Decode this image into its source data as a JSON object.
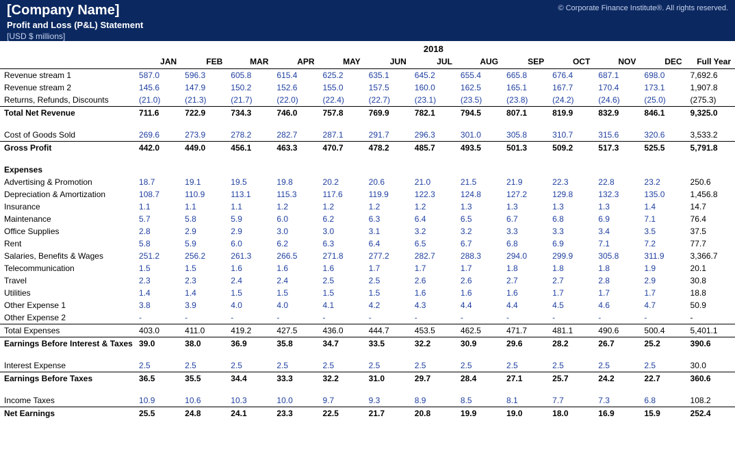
{
  "styling": {
    "header_bg": "#0b2860",
    "header_text": "#ffffff",
    "header_subtext": "#c8d4ee",
    "value_color": "#2040a0",
    "total_color": "#000000",
    "border_color": "#000000",
    "font_family": "Arial"
  },
  "header": {
    "company": "[Company Name]",
    "subtitle": "Profit and Loss (P&L) Statement",
    "units": "[USD $ millions]",
    "copyright": "© Corporate Finance Institute®. All rights reserved."
  },
  "year": "2018",
  "months": [
    "JAN",
    "FEB",
    "MAR",
    "APR",
    "MAY",
    "JUN",
    "JUL",
    "AUG",
    "SEP",
    "OCT",
    "NOV",
    "DEC"
  ],
  "full_year_label": "Full Year",
  "rows": [
    {
      "label": "Revenue stream 1",
      "vals": [
        "587.0",
        "596.3",
        "605.8",
        "615.4",
        "625.2",
        "635.1",
        "645.2",
        "655.4",
        "665.8",
        "676.4",
        "687.1",
        "698.0"
      ],
      "full": "7,692.6",
      "style": "data"
    },
    {
      "label": "Revenue stream 2",
      "vals": [
        "145.6",
        "147.9",
        "150.2",
        "152.6",
        "155.0",
        "157.5",
        "160.0",
        "162.5",
        "165.1",
        "167.7",
        "170.4",
        "173.1"
      ],
      "full": "1,907.8",
      "style": "data"
    },
    {
      "label": "Returns, Refunds, Discounts",
      "vals": [
        "(21.0)",
        "(21.3)",
        "(21.7)",
        "(22.0)",
        "(22.4)",
        "(22.7)",
        "(23.1)",
        "(23.5)",
        "(23.8)",
        "(24.2)",
        "(24.6)",
        "(25.0)"
      ],
      "full": "(275.3)",
      "style": "data"
    },
    {
      "label": "Total Net Revenue",
      "vals": [
        "711.6",
        "722.9",
        "734.3",
        "746.0",
        "757.8",
        "769.9",
        "782.1",
        "794.5",
        "807.1",
        "819.9",
        "832.9",
        "846.1"
      ],
      "full": "9,325.0",
      "style": "total",
      "border_top": true
    },
    {
      "style": "spacer"
    },
    {
      "label": "Cost of Goods Sold",
      "vals": [
        "269.6",
        "273.9",
        "278.2",
        "282.7",
        "287.1",
        "291.7",
        "296.3",
        "301.0",
        "305.8",
        "310.7",
        "315.6",
        "320.6"
      ],
      "full": "3,533.2",
      "style": "data"
    },
    {
      "label": "Gross Profit",
      "vals": [
        "442.0",
        "449.0",
        "456.1",
        "463.3",
        "470.7",
        "478.2",
        "485.7",
        "493.5",
        "501.3",
        "509.2",
        "517.3",
        "525.5"
      ],
      "full": "5,791.8",
      "style": "total",
      "border_top": true
    },
    {
      "style": "spacer"
    },
    {
      "label": "Expenses",
      "style": "section"
    },
    {
      "label": "Advertising & Promotion",
      "vals": [
        "18.7",
        "19.1",
        "19.5",
        "19.8",
        "20.2",
        "20.6",
        "21.0",
        "21.5",
        "21.9",
        "22.3",
        "22.8",
        "23.2"
      ],
      "full": "250.6",
      "style": "data"
    },
    {
      "label": "Depreciation & Amortization",
      "vals": [
        "108.7",
        "110.9",
        "113.1",
        "115.3",
        "117.6",
        "119.9",
        "122.3",
        "124.8",
        "127.2",
        "129.8",
        "132.3",
        "135.0"
      ],
      "full": "1,456.8",
      "style": "data"
    },
    {
      "label": "Insurance",
      "vals": [
        "1.1",
        "1.1",
        "1.1",
        "1.2",
        "1.2",
        "1.2",
        "1.2",
        "1.3",
        "1.3",
        "1.3",
        "1.3",
        "1.4"
      ],
      "full": "14.7",
      "style": "data"
    },
    {
      "label": "Maintenance",
      "vals": [
        "5.7",
        "5.8",
        "5.9",
        "6.0",
        "6.2",
        "6.3",
        "6.4",
        "6.5",
        "6.7",
        "6.8",
        "6.9",
        "7.1"
      ],
      "full": "76.4",
      "style": "data"
    },
    {
      "label": "Office Supplies",
      "vals": [
        "2.8",
        "2.9",
        "2.9",
        "3.0",
        "3.0",
        "3.1",
        "3.2",
        "3.2",
        "3.3",
        "3.3",
        "3.4",
        "3.5"
      ],
      "full": "37.5",
      "style": "data"
    },
    {
      "label": "Rent",
      "vals": [
        "5.8",
        "5.9",
        "6.0",
        "6.2",
        "6.3",
        "6.4",
        "6.5",
        "6.7",
        "6.8",
        "6.9",
        "7.1",
        "7.2"
      ],
      "full": "77.7",
      "style": "data"
    },
    {
      "label": "Salaries, Benefits & Wages",
      "vals": [
        "251.2",
        "256.2",
        "261.3",
        "266.5",
        "271.8",
        "277.2",
        "282.7",
        "288.3",
        "294.0",
        "299.9",
        "305.8",
        "311.9"
      ],
      "full": "3,366.7",
      "style": "data"
    },
    {
      "label": "Telecommunication",
      "vals": [
        "1.5",
        "1.5",
        "1.6",
        "1.6",
        "1.6",
        "1.7",
        "1.7",
        "1.7",
        "1.8",
        "1.8",
        "1.8",
        "1.9"
      ],
      "full": "20.1",
      "style": "data"
    },
    {
      "label": "Travel",
      "vals": [
        "2.3",
        "2.3",
        "2.4",
        "2.4",
        "2.5",
        "2.5",
        "2.6",
        "2.6",
        "2.7",
        "2.7",
        "2.8",
        "2.9"
      ],
      "full": "30.8",
      "style": "data"
    },
    {
      "label": "Utilities",
      "vals": [
        "1.4",
        "1.4",
        "1.5",
        "1.5",
        "1.5",
        "1.5",
        "1.6",
        "1.6",
        "1.6",
        "1.7",
        "1.7",
        "1.7"
      ],
      "full": "18.8",
      "style": "data"
    },
    {
      "label": "Other Expense 1",
      "vals": [
        "3.8",
        "3.9",
        "4.0",
        "4.0",
        "4.1",
        "4.2",
        "4.3",
        "4.4",
        "4.4",
        "4.5",
        "4.6",
        "4.7"
      ],
      "full": "50.9",
      "style": "data"
    },
    {
      "label": "Other Expense 2",
      "vals": [
        "-",
        "-",
        "-",
        "-",
        "-",
        "-",
        "-",
        "-",
        "-",
        "-",
        "-",
        "-"
      ],
      "full": "-",
      "style": "data"
    },
    {
      "label": "Total Expenses",
      "vals": [
        "403.0",
        "411.0",
        "419.2",
        "427.5",
        "436.0",
        "444.7",
        "453.5",
        "462.5",
        "471.7",
        "481.1",
        "490.6",
        "500.4"
      ],
      "full": "5,401.1",
      "style": "subtotal",
      "border_top": true
    },
    {
      "label": "Earnings Before Interest & Taxes",
      "vals": [
        "39.0",
        "38.0",
        "36.9",
        "35.8",
        "34.7",
        "33.5",
        "32.2",
        "30.9",
        "29.6",
        "28.2",
        "26.7",
        "25.2"
      ],
      "full": "390.6",
      "style": "total",
      "border_top": true
    },
    {
      "style": "spacer"
    },
    {
      "label": "Interest Expense",
      "vals": [
        "2.5",
        "2.5",
        "2.5",
        "2.5",
        "2.5",
        "2.5",
        "2.5",
        "2.5",
        "2.5",
        "2.5",
        "2.5",
        "2.5"
      ],
      "full": "30.0",
      "style": "data"
    },
    {
      "label": "Earnings Before Taxes",
      "vals": [
        "36.5",
        "35.5",
        "34.4",
        "33.3",
        "32.2",
        "31.0",
        "29.7",
        "28.4",
        "27.1",
        "25.7",
        "24.2",
        "22.7"
      ],
      "full": "360.6",
      "style": "total",
      "border_top": true
    },
    {
      "style": "spacer"
    },
    {
      "label": "Income Taxes",
      "vals": [
        "10.9",
        "10.6",
        "10.3",
        "10.0",
        "9.7",
        "9.3",
        "8.9",
        "8.5",
        "8.1",
        "7.7",
        "7.3",
        "6.8"
      ],
      "full": "108.2",
      "style": "data"
    },
    {
      "label": "Net Earnings",
      "vals": [
        "25.5",
        "24.8",
        "24.1",
        "23.3",
        "22.5",
        "21.7",
        "20.8",
        "19.9",
        "19.0",
        "18.0",
        "16.9",
        "15.9"
      ],
      "full": "252.4",
      "style": "total",
      "border_top": true
    }
  ]
}
